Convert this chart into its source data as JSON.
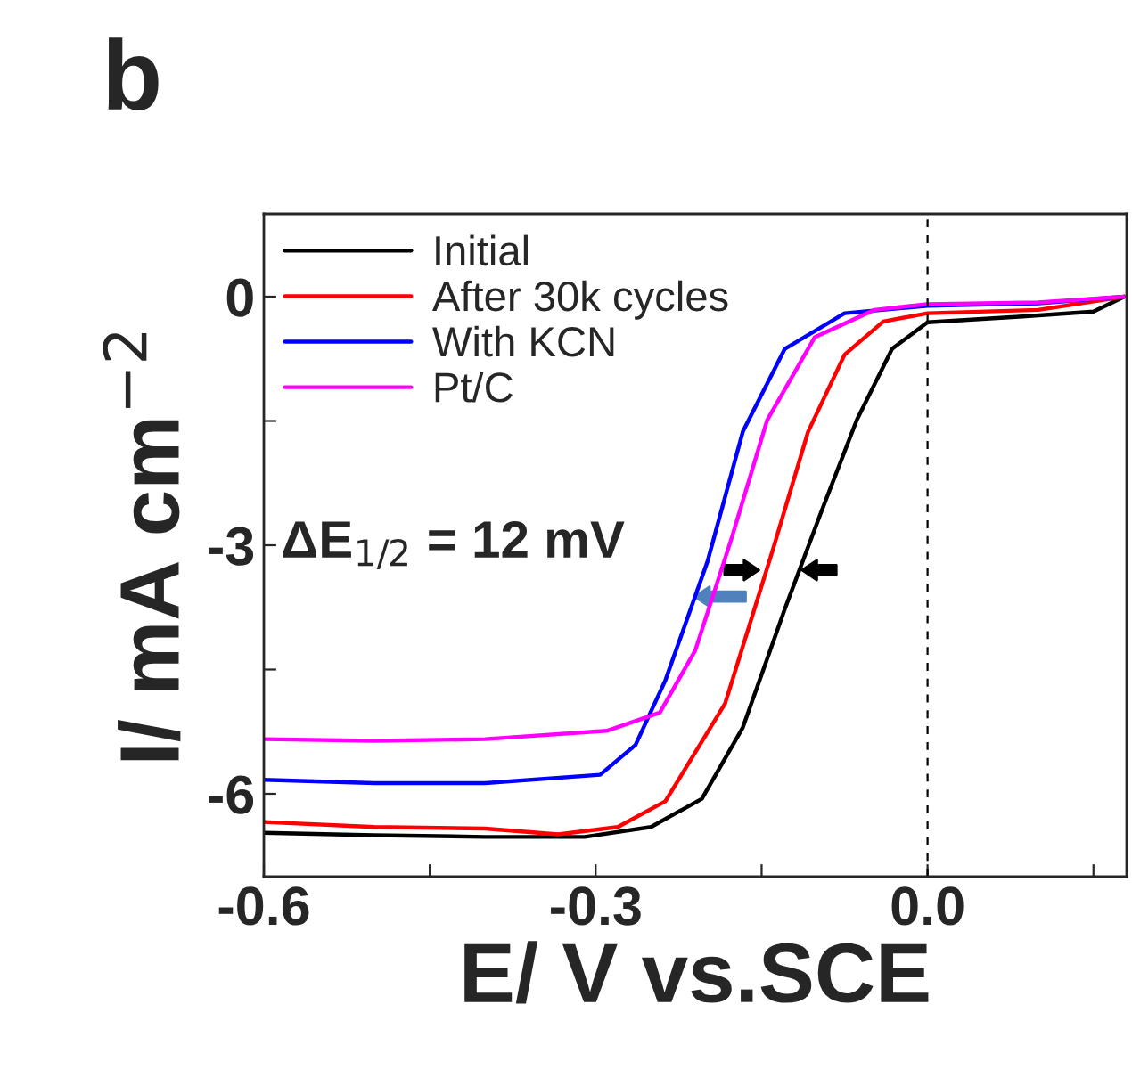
{
  "chart_data": {
    "type": "line",
    "title": "b",
    "xlabel": "E/ V vs.SCE",
    "ylabel": "I/ mA cm$^{−2}$",
    "xlim": [
      -0.6,
      0.18
    ],
    "ylim": [
      -7.0,
      1.0
    ],
    "xticks": [
      {
        "value": -0.6,
        "label": "-0.6"
      },
      {
        "value": -0.45,
        "label": null
      },
      {
        "value": -0.3,
        "label": "-0.3"
      },
      {
        "value": -0.15,
        "label": null
      },
      {
        "value": 0.0,
        "label": "0.0"
      },
      {
        "value": 0.15,
        "label": null
      }
    ],
    "yticks": [
      {
        "value": -6,
        "label": "-6"
      },
      {
        "value": -4.5,
        "label": null
      },
      {
        "value": -3,
        "label": "-3"
      },
      {
        "value": -1.5,
        "label": null
      },
      {
        "value": 0,
        "label": "0"
      }
    ],
    "grid": false,
    "legend": "top left",
    "line_style": "solid",
    "marker": "none",
    "ref_lines": [
      {
        "axis": "x",
        "value": 0.0,
        "color": "#000000",
        "line_style": "dashed"
      }
    ],
    "annotations": [
      "ΔE$_{1/2}$ = 12 mV"
    ],
    "series": [
      {
        "name": "Initial",
        "color": "#000000",
        "x": [
          -0.6,
          -0.5,
          -0.4,
          -0.31,
          -0.25,
          -0.204,
          -0.167,
          -0.129,
          -0.097,
          -0.064,
          -0.032,
          0,
          0.086,
          0.15,
          0.178
        ],
        "values": [
          -6.47,
          -6.5,
          -6.52,
          -6.52,
          -6.4,
          -6.06,
          -5.2,
          -3.77,
          -2.63,
          -1.49,
          -0.63,
          -0.31,
          -0.24,
          -0.18,
          0
        ]
      },
      {
        "name": "After 30k cycles",
        "color": "#ff0000",
        "x": [
          -0.6,
          -0.5,
          -0.4,
          -0.334,
          -0.28,
          -0.237,
          -0.183,
          -0.14,
          -0.108,
          -0.075,
          -0.04,
          0,
          0.1,
          0.178
        ],
        "values": [
          -6.34,
          -6.4,
          -6.42,
          -6.49,
          -6.4,
          -6.09,
          -4.91,
          -3.06,
          -1.63,
          -0.7,
          -0.3,
          -0.2,
          -0.16,
          0
        ]
      },
      {
        "name": "With KCN",
        "color": "#0000ff",
        "x": [
          -0.6,
          -0.5,
          -0.4,
          -0.296,
          -0.264,
          -0.237,
          -0.199,
          -0.167,
          -0.129,
          -0.075,
          0,
          0.1,
          0.178
        ],
        "values": [
          -5.83,
          -5.87,
          -5.87,
          -5.77,
          -5.41,
          -4.63,
          -3.2,
          -1.63,
          -0.63,
          -0.2,
          -0.11,
          -0.08,
          0
        ]
      },
      {
        "name": "Pt/C",
        "color": "#ff00ff",
        "x": [
          -0.6,
          -0.5,
          -0.4,
          -0.29,
          -0.242,
          -0.21,
          -0.177,
          -0.145,
          -0.102,
          -0.048,
          0,
          0.1,
          0.178
        ],
        "values": [
          -5.34,
          -5.36,
          -5.34,
          -5.24,
          -5.02,
          -4.27,
          -2.91,
          -1.49,
          -0.49,
          -0.16,
          -0.09,
          -0.07,
          0
        ]
      }
    ]
  }
}
